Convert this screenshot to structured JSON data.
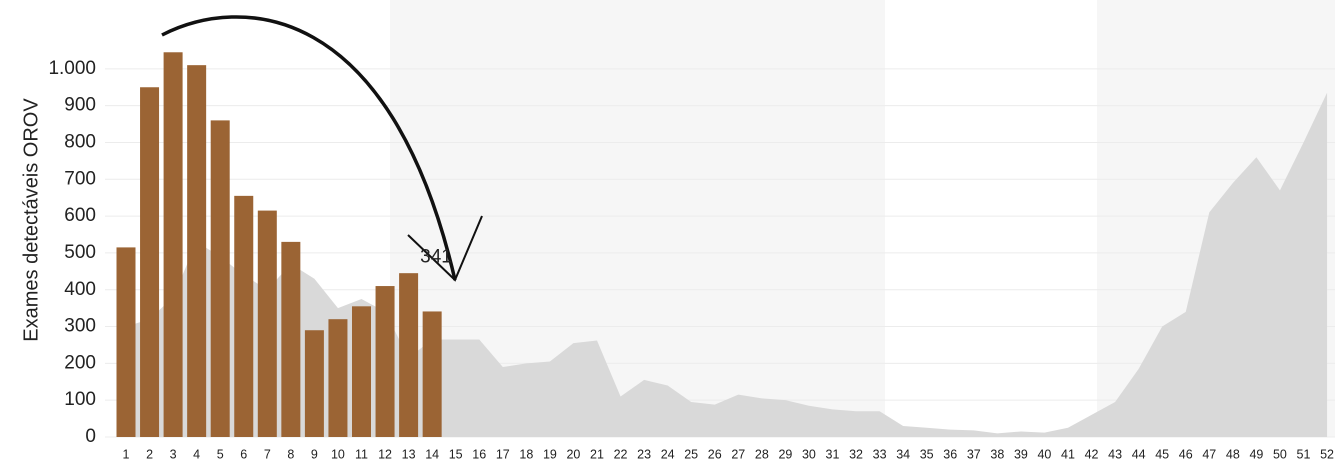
{
  "chart_data": {
    "type": "bar",
    "y_label": "Exames detectáveis OROV",
    "annotation": "341",
    "categories": [
      "1",
      "2",
      "3",
      "4",
      "5",
      "6",
      "7",
      "8",
      "9",
      "10",
      "11",
      "12",
      "13",
      "14",
      "15",
      "16",
      "17",
      "18",
      "19",
      "20",
      "21",
      "22",
      "23",
      "24",
      "25",
      "26",
      "27",
      "28",
      "29",
      "30",
      "31",
      "32",
      "33",
      "34",
      "35",
      "36",
      "37",
      "38",
      "39",
      "40",
      "41",
      "42",
      "43",
      "44",
      "45",
      "46",
      "47",
      "48",
      "49",
      "50",
      "51",
      "52"
    ],
    "series": [
      {
        "style": "area",
        "color": "#d9d9d9",
        "values": [
          300,
          320,
          380,
          530,
          490,
          440,
          400,
          470,
          430,
          350,
          375,
          340,
          215,
          265,
          265,
          265,
          190,
          200,
          205,
          255,
          262,
          110,
          155,
          140,
          95,
          88,
          115,
          105,
          100,
          85,
          75,
          70,
          70,
          30,
          25,
          20,
          18,
          10,
          15,
          12,
          25,
          60,
          95,
          185,
          300,
          340,
          610,
          690,
          760,
          670,
          800,
          935
        ]
      },
      {
        "style": "bar",
        "color": "#9b6434",
        "values": [
          515,
          950,
          1045,
          1010,
          860,
          655,
          615,
          530,
          290,
          320,
          355,
          410,
          445,
          341,
          null,
          null,
          null,
          null,
          null,
          null,
          null,
          null,
          null,
          null,
          null,
          null,
          null,
          null,
          null,
          null,
          null,
          null,
          null,
          null,
          null,
          null,
          null,
          null,
          null,
          null,
          null,
          null,
          null,
          null,
          null,
          null,
          null,
          null,
          null,
          null,
          null,
          null
        ]
      }
    ],
    "ylim": [
      0,
      1187
    ],
    "yticks": [
      0,
      100,
      200,
      300,
      400,
      500,
      600,
      700,
      800,
      900,
      {
        "value": 1000,
        "label": "1.000"
      }
    ],
    "grid": true
  }
}
